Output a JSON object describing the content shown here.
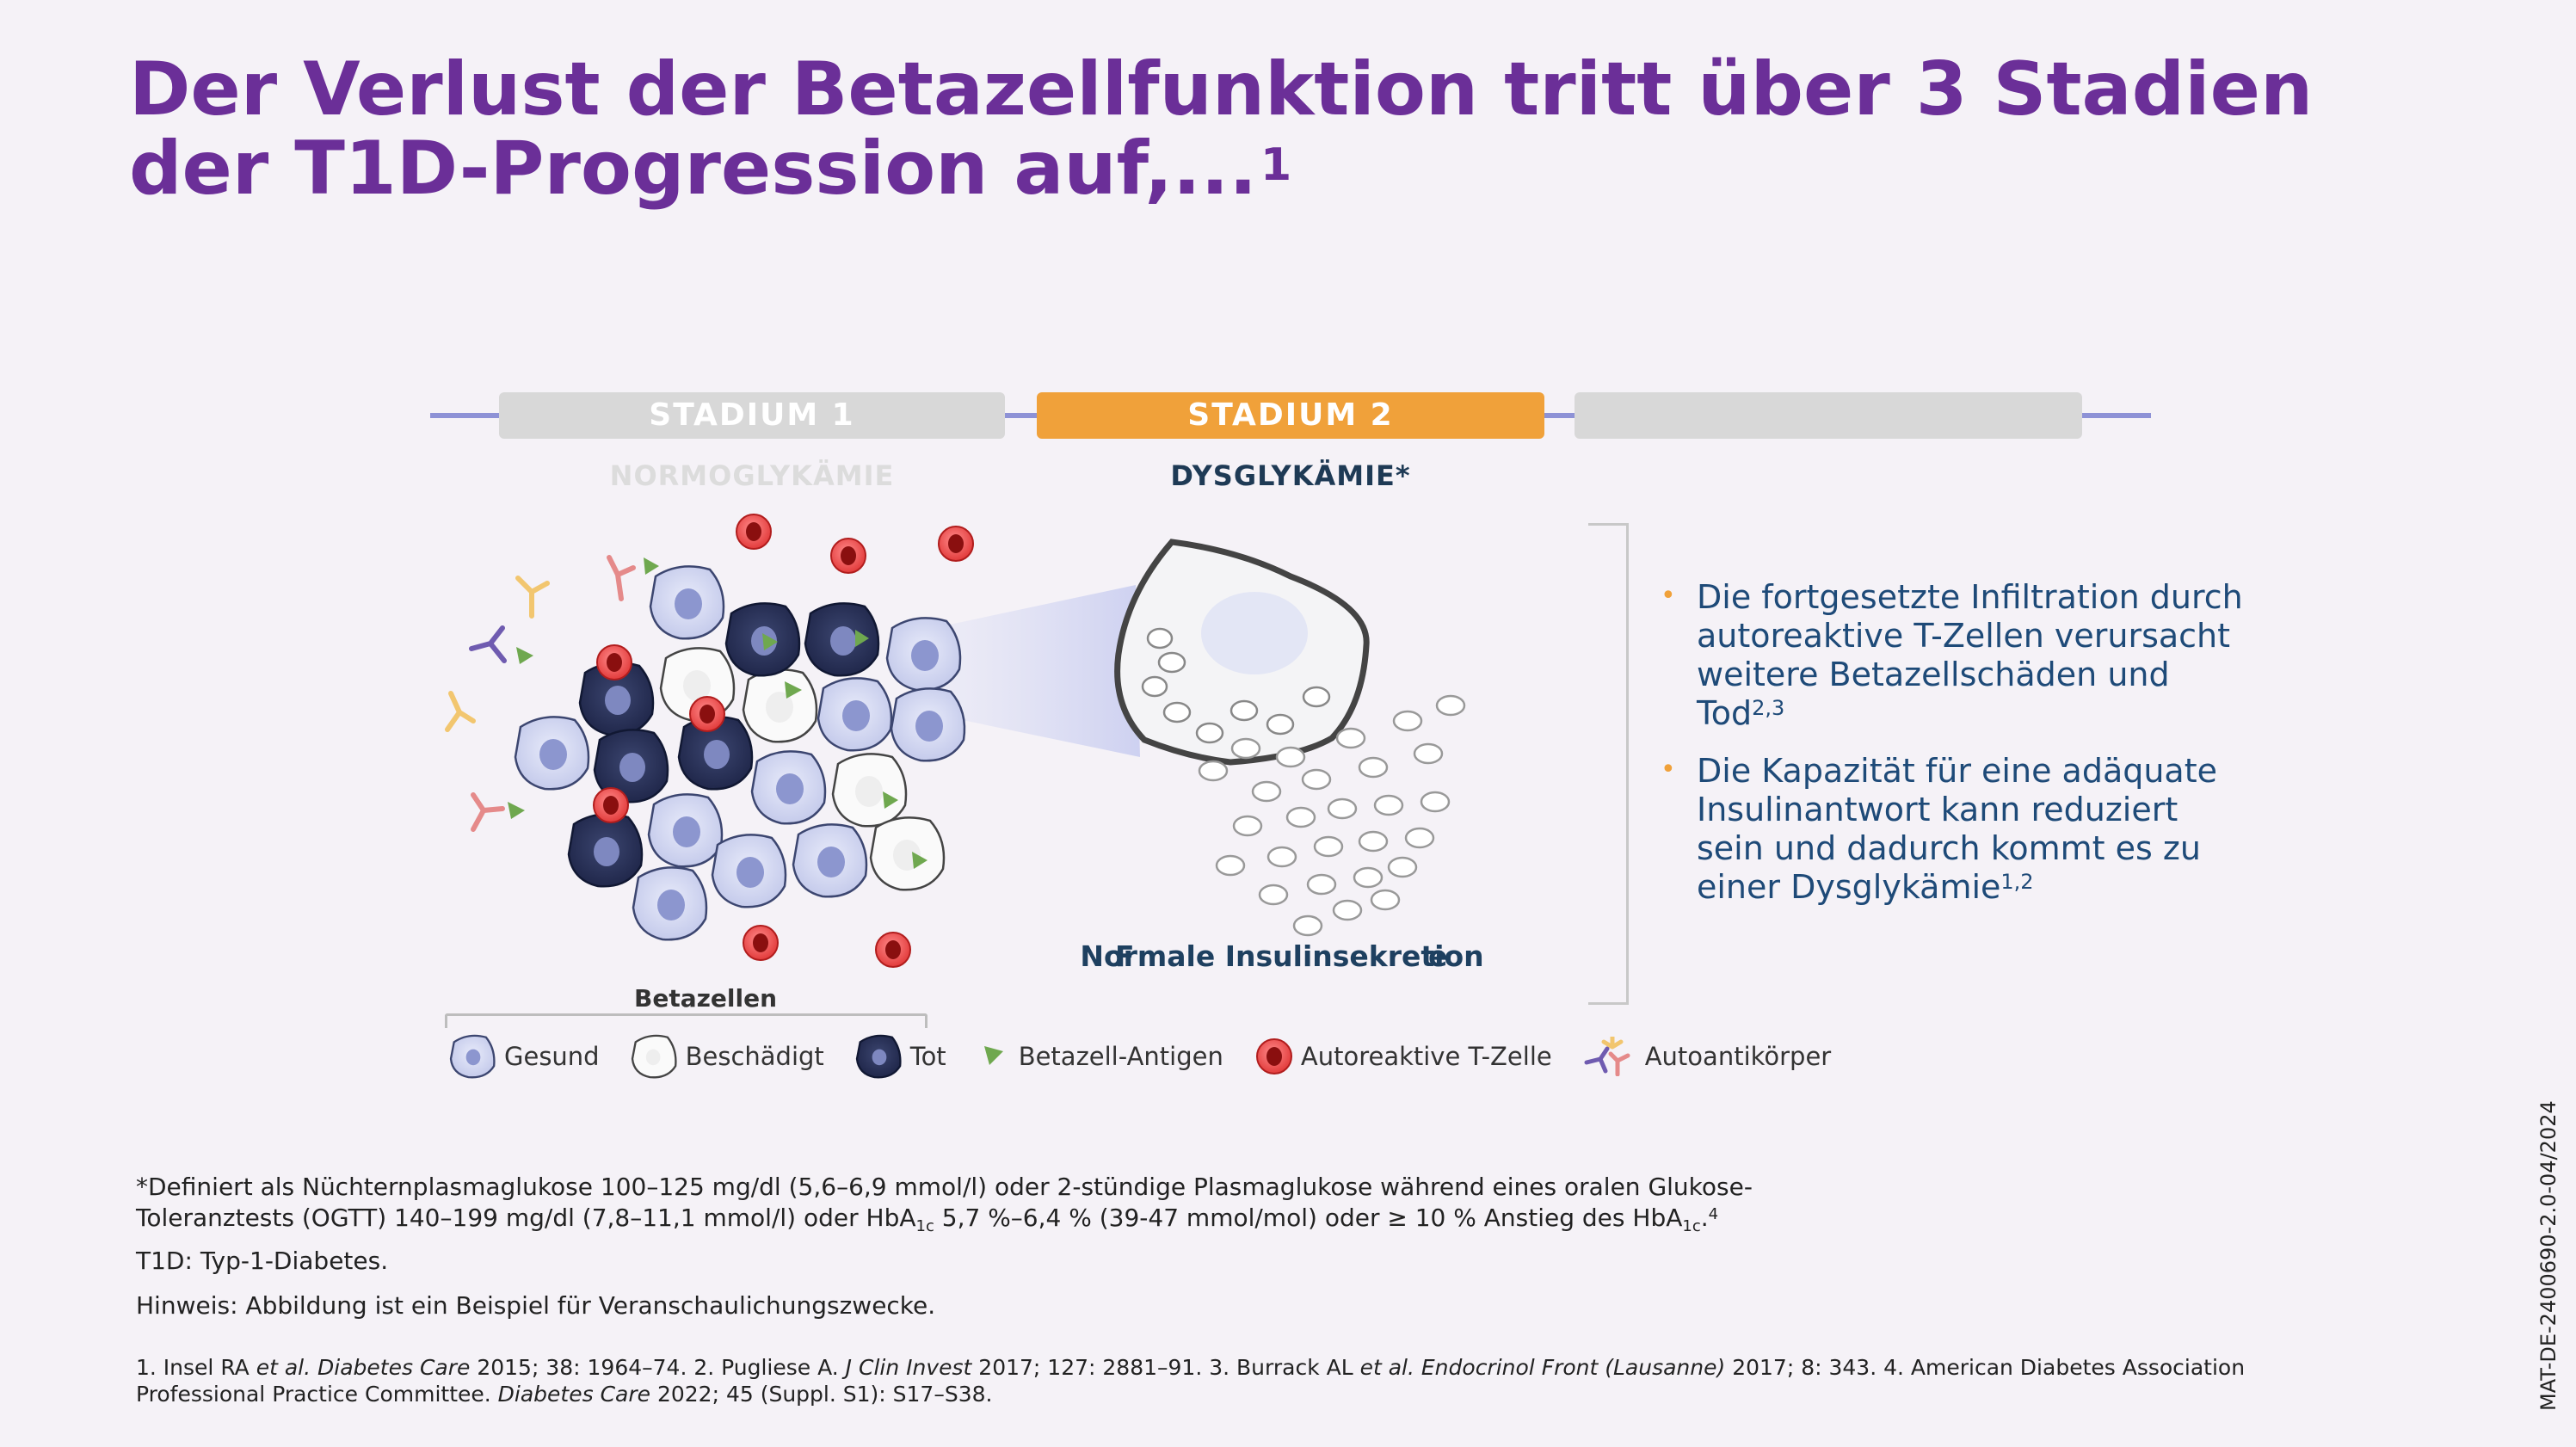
{
  "title": "Der Verlust der Betazellfunktion tritt über 3 Stadien der T1D-Progression auf,...",
  "title_ref": "1",
  "stages": [
    {
      "label": "STADIUM 1",
      "subtitle": "NORMOGLYKÄMIE",
      "active": false
    },
    {
      "label": "STADIUM 2",
      "subtitle": "DYSGLYKÄMIE*",
      "active": true
    },
    {
      "label": "",
      "subtitle": "",
      "active": false
    }
  ],
  "colors": {
    "title": "#6b2f98",
    "active_stage": "#f0a13a",
    "inactive_stage": "#d8d8d8",
    "timeline": "#8e92d6",
    "bullet_text": "#1e4a78",
    "bullet_dot": "#f0a13a"
  },
  "diagram": {
    "beta_cells_label": "Betazellen",
    "insulin_label": "Normale Insulinsekretion",
    "insulin_fragment_left": "F",
    "insulin_fragment_right": "e"
  },
  "bullets": [
    {
      "text": "Die fortgesetzte Infiltration durch autoreaktive T-Zellen verursacht weitere Betazellschäden und Tod",
      "ref": "2,3"
    },
    {
      "text": "Die Kapazität für eine adäquate Insulinantwort kann reduziert sein und dadurch kommt es zu einer Dysglykämie",
      "ref": "1,2"
    }
  ],
  "legend": [
    {
      "icon": "healthy-cell-icon",
      "label": "Gesund"
    },
    {
      "icon": "damaged-cell-icon",
      "label": "Beschädigt"
    },
    {
      "icon": "dead-cell-icon",
      "label": "Tot"
    },
    {
      "icon": "antigen-icon",
      "label": "Betazell-Antigen"
    },
    {
      "icon": "t-cell-icon",
      "label": "Autoreaktive T-Zelle"
    },
    {
      "icon": "autoantibody-icon",
      "label": "Autoantikörper"
    }
  ],
  "footnotes": {
    "definition_part1": "*Definiert als Nüchternplasmaglukose 100–125 mg/dl (5,6–6,9 mmol/l) oder 2-stündige Plasmaglukose während eines oralen Glukose-",
    "definition_part2a": "Toleranztests (OGTT) 140–199 mg/dl (7,8–11,1 mmol/l)  oder HbA",
    "definition_part2b": " 5,7 %–6,4 % (39-47 mmol/mol) oder ≥ 10 % Anstieg des HbA",
    "definition_sub": "1c",
    "definition_end": ".",
    "definition_ref": "4",
    "abbreviation": "T1D: Typ-1-Diabetes.",
    "note": "Hinweis: Abbildung ist ein Beispiel für Veranschaulichungszwecke."
  },
  "references": {
    "r1a": "1. Insel RA ",
    "r1b": "et al. Diabetes Care",
    "r1c": " 2015; 38: 1964–74. 2. Pugliese A. ",
    "r2b": "J Clin Invest",
    "r2c": " 2017; 127: 2881–91. 3. Burrack AL ",
    "r3b": "et al. Endocrinol Front (Lausanne)",
    "r3c": " 2017; 8: 343. 4. American Diabetes Association Professional Practice Committee. ",
    "r4b": "Diabetes Care",
    "r4c": " 2022; 45 (Suppl. S1): S17–S38."
  },
  "document_code": "MAT-DE-2400690-2.0-04/2024"
}
